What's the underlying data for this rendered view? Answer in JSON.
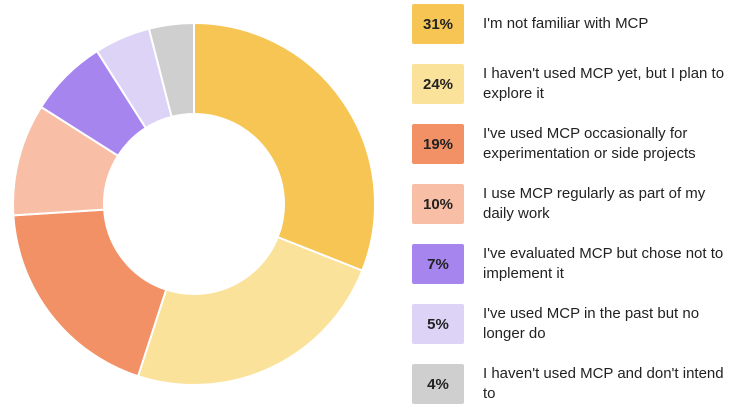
{
  "chart_data": {
    "type": "pie",
    "donut": true,
    "legend_position": "right",
    "slices": [
      {
        "label": "I'm not familiar with MCP",
        "value": 31,
        "display": "31%",
        "color": "#f6c553"
      },
      {
        "label": "I haven't used MCP yet, but I plan to explore it",
        "value": 24,
        "display": "24%",
        "color": "#fbe29b"
      },
      {
        "label": "I've used MCP occasionally for experimentation or side projects",
        "value": 19,
        "display": "19%",
        "color": "#f29066"
      },
      {
        "label": "I use MCP regularly as part of my daily work",
        "value": 10,
        "display": "10%",
        "color": "#f8bfa6"
      },
      {
        "label": "I've evaluated MCP but chose not to implement it",
        "value": 7,
        "display": "7%",
        "color": "#a785ee"
      },
      {
        "label": "I've used MCP in the past but no longer do",
        "value": 5,
        "display": "5%",
        "color": "#ddd3f7"
      },
      {
        "label": "I haven't used MCP and don't intend to",
        "value": 4,
        "display": "4%",
        "color": "#cfcfcf"
      }
    ]
  }
}
